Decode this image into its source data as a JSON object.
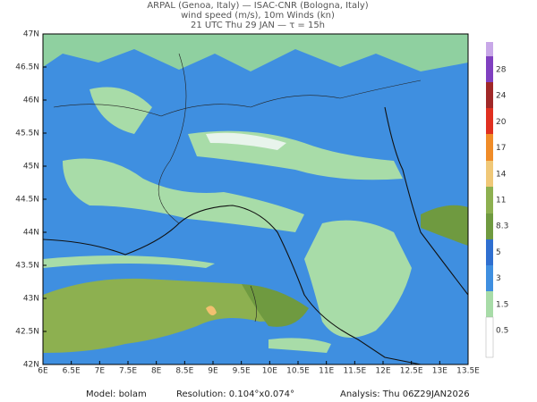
{
  "header": {
    "line1": "ARPAL (Genoa, Italy)  —  ISAC-CNR (Bologna, Italy)",
    "line2": "wind speed (m/s), 10m Winds (kn)",
    "line3": "21 UTC Thu 29 JAN  —  τ = 15h"
  },
  "map": {
    "lat_labels": [
      "47N",
      "46.5N",
      "46N",
      "45.5N",
      "45N",
      "44.5N",
      "44N",
      "43.5N",
      "43N",
      "42.5N",
      "42N"
    ],
    "lon_labels": [
      "6E",
      "6.5E",
      "7E",
      "7.5E",
      "8E",
      "8.5E",
      "9E",
      "9.5E",
      "10E",
      "10.5E",
      "11E",
      "11.5E",
      "12E",
      "12.5E",
      "13E",
      "13.5E"
    ]
  },
  "colorbar": {
    "labels": [
      "28",
      "24",
      "20",
      "17",
      "14",
      "11",
      "8.3",
      "5",
      "3",
      "1.5",
      "0.5"
    ]
  },
  "footer": {
    "model": "Model:  bolam",
    "resolution": "Resolution:  0.104°x0.074°",
    "analysis": "Analysis:  Thu  06Z29JAN2026"
  }
}
